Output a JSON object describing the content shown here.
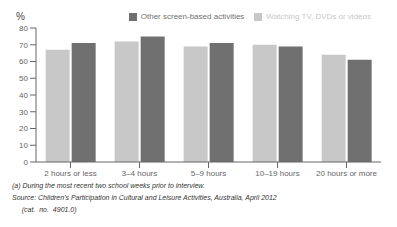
{
  "chart_data": {
    "type": "bar",
    "ylabel": "%",
    "categories": [
      "2 hours or less",
      "3–4 hours",
      "5–9 hours",
      "10–19 hours",
      "20 hours or more"
    ],
    "series": [
      {
        "name": "Watching TV, DVDs or videos",
        "color": "#c8c8c8",
        "values": [
          67,
          72,
          69,
          70,
          64
        ]
      },
      {
        "name": "Other screen-based activities",
        "color": "#707070",
        "values": [
          71,
          75,
          71,
          69,
          61
        ]
      }
    ],
    "ylim": [
      0,
      80
    ],
    "yticks": [
      0,
      10,
      20,
      30,
      40,
      50,
      60,
      70,
      80
    ],
    "grid": false,
    "legend": "upper right",
    "annotations": [
      "(a) During the most recent two school weeks prior to interview.",
      "Source: Children's Participation in Cultural and Leisure Activities, Australia, April 2012",
      "     (cat.  no.  4901.0)"
    ]
  }
}
